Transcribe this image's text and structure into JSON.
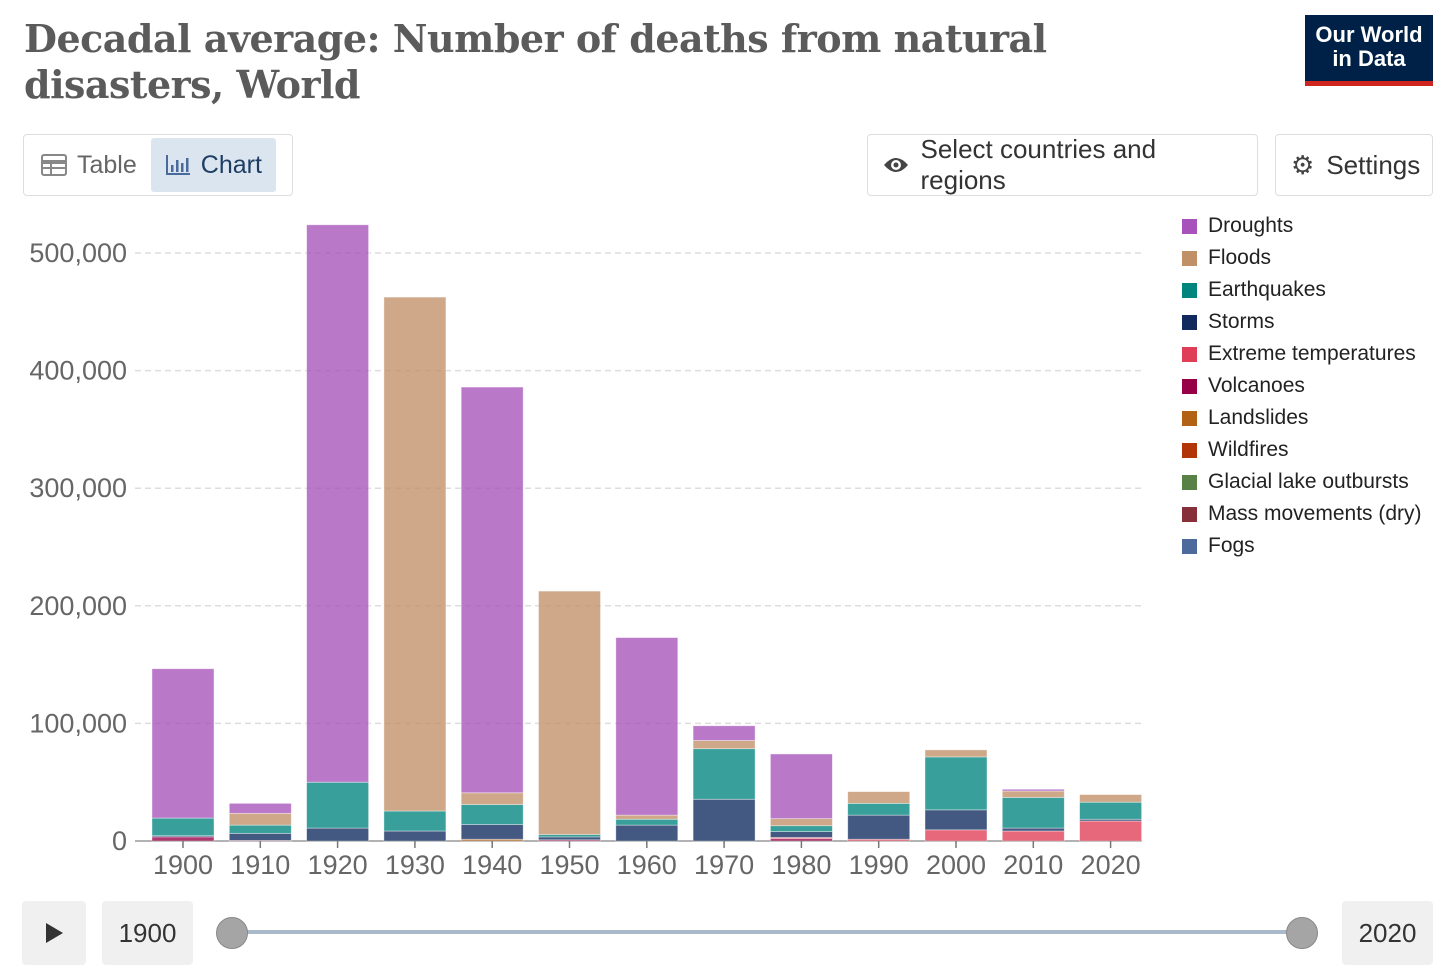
{
  "header": {
    "title": "Decadal average: Number of deaths from natural disasters, World",
    "logo": "Our World in Data"
  },
  "tabs": {
    "table": "Table",
    "chart": "Chart"
  },
  "buttons": {
    "select": "Select countries and regions",
    "settings": "Settings"
  },
  "timeline": {
    "start": "1900",
    "end": "2020"
  },
  "chart_data": {
    "type": "bar",
    "stacked": true,
    "title": "Decadal average: Number of deaths from natural disasters, World",
    "categories": [
      "1900",
      "1910",
      "1920",
      "1930",
      "1940",
      "1950",
      "1960",
      "1970",
      "1980",
      "1990",
      "2000",
      "2010",
      "2020"
    ],
    "ylim": [
      0,
      500000
    ],
    "yticks": [
      0,
      100000,
      200000,
      300000,
      400000,
      500000
    ],
    "ytick_labels": [
      "0",
      "100,000",
      "200,000",
      "300,000",
      "400,000",
      "500,000"
    ],
    "legend_position": "right",
    "series": [
      {
        "name": "Droughts",
        "color": "#a652ba",
        "values": [
          127000,
          8500,
          474000,
          0,
          345000,
          0,
          151000,
          12500,
          55000,
          0,
          0,
          1500,
          0
        ]
      },
      {
        "name": "Floods",
        "color": "#c09066",
        "values": [
          0,
          10000,
          0,
          437000,
          10000,
          207000,
          3500,
          7000,
          6000,
          10000,
          6000,
          5500,
          6500
        ]
      },
      {
        "name": "Earthquakes",
        "color": "#00847e",
        "values": [
          15000,
          7000,
          39000,
          17000,
          17000,
          2000,
          5000,
          43000,
          5000,
          10000,
          45000,
          26000,
          14500
        ]
      },
      {
        "name": "Storms",
        "color": "#102a5e",
        "values": [
          1000,
          6000,
          11000,
          8500,
          12500,
          2500,
          13500,
          35500,
          5000,
          20500,
          17000,
          2500,
          1500
        ]
      },
      {
        "name": "Extreme temperatures",
        "color": "#e03e56",
        "values": [
          0,
          0,
          0,
          0,
          0,
          0,
          0,
          0,
          1000,
          1500,
          9500,
          8500,
          17000
        ]
      },
      {
        "name": "Volcanoes",
        "color": "#970046",
        "values": [
          3500,
          500,
          0,
          0,
          0,
          1000,
          0,
          0,
          2000,
          0,
          0,
          0,
          0
        ]
      },
      {
        "name": "Landslides",
        "color": "#b16214",
        "values": [
          0,
          0,
          0,
          0,
          1500,
          0,
          0,
          0,
          0,
          0,
          0,
          0,
          0
        ]
      },
      {
        "name": "Wildfires",
        "color": "#b13507",
        "values": [
          0,
          0,
          0,
          0,
          0,
          0,
          0,
          0,
          0,
          0,
          0,
          0,
          0
        ]
      },
      {
        "name": "Glacial lake outbursts",
        "color": "#578145",
        "values": [
          0,
          0,
          0,
          0,
          0,
          0,
          0,
          0,
          0,
          0,
          0,
          0,
          0
        ]
      },
      {
        "name": "Mass movements (dry)",
        "color": "#883039",
        "values": [
          0,
          0,
          0,
          0,
          0,
          0,
          0,
          0,
          0,
          0,
          0,
          0,
          0
        ]
      },
      {
        "name": "Fogs",
        "color": "#4c6a9c",
        "values": [
          0,
          0,
          0,
          0,
          0,
          0,
          0,
          0,
          0,
          0,
          0,
          0,
          0
        ]
      }
    ]
  }
}
